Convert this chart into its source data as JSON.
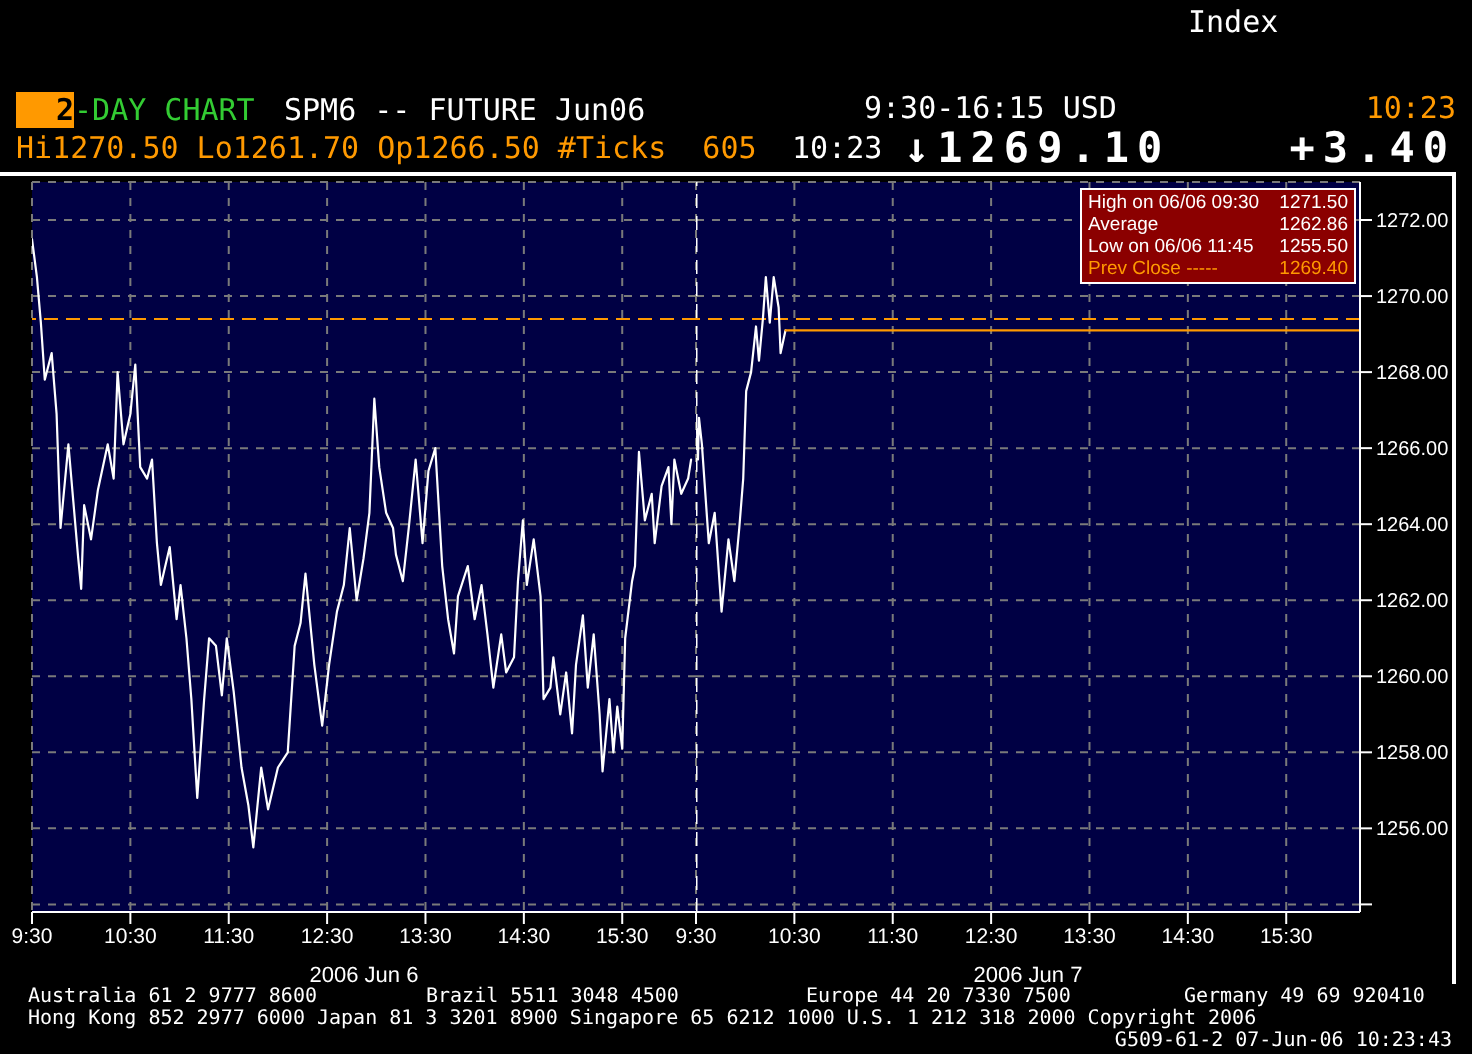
{
  "chart_data": [
    {
      "type": "line",
      "title": "2-DAY CHART",
      "subtitle": "SPM6 -- FUTURE Jun06",
      "xlabel": "2006 Jun 6",
      "annotations": [
        "Index",
        "9:30-16:15 USD",
        "10:23",
        "Hi1270.50 Lo1261.70 Op1266.50 #Ticks  605",
        "10:23",
        "↓1269.10",
        "+3.40",
        "Australia 61 2 9777 8600",
        "Brazil 5511 3048 4500",
        "Europe 44 20 7330 7500",
        "Germany 49 69 920410",
        "Hong Kong 852 2977 6000 Japan 81 3 3201 8900 Singapore 65 6212 1000 U.S. 1 212 318 2000 Copyright 2006",
        "G509-61-2 07-Jun-06 10:23:43"
      ],
      "series": [
        {
          "color": "#ffffff",
          "x": [
            9.5,
            9.55,
            9.59,
            9.63,
            9.7,
            9.75,
            9.79,
            9.87,
            9.92,
            9.97,
            10.0,
            10.03,
            10.1,
            10.17,
            10.27,
            10.33,
            10.37,
            10.43,
            10.5,
            10.55,
            10.6,
            10.67,
            10.72,
            10.77,
            10.81,
            10.9,
            10.97,
            11.01,
            11.07,
            11.12,
            11.18,
            11.25,
            11.3,
            11.37,
            11.43,
            11.48,
            11.55,
            11.63,
            11.7,
            11.75,
            11.83,
            11.9,
            12.0,
            12.1,
            12.17,
            12.23,
            12.28,
            12.37,
            12.45,
            12.52,
            12.6,
            12.67,
            12.73,
            12.8,
            12.87,
            12.93,
            12.98,
            13.03,
            13.1,
            13.17,
            13.2,
            13.27,
            13.33,
            13.4,
            13.47,
            13.53,
            13.6,
            13.67,
            13.73,
            13.79,
            13.83,
            13.93,
            14.0,
            14.07,
            14.13,
            14.19,
            14.27,
            14.32,
            14.4,
            14.44,
            14.49,
            14.53,
            14.6,
            14.67,
            14.7,
            14.77,
            14.8,
            14.87,
            14.93,
            14.99,
            15.03,
            15.1,
            15.15,
            15.21,
            15.27,
            15.3,
            15.37,
            15.41,
            15.45,
            15.5,
            15.53,
            15.6,
            15.63,
            15.67,
            15.73,
            15.8,
            15.83,
            15.9,
            15.97,
            16.0,
            16.03,
            16.1,
            16.17,
            16.2
          ],
          "values": [
            1271.5,
            1270.5,
            1269.3,
            1267.8,
            1268.5,
            1266.9,
            1263.9,
            1266.1,
            1264.6,
            1263.1,
            1262.3,
            1264.5,
            1263.6,
            1264.9,
            1266.1,
            1265.2,
            1268.0,
            1266.1,
            1266.9,
            1268.2,
            1265.5,
            1265.2,
            1265.7,
            1263.5,
            1262.4,
            1263.4,
            1261.5,
            1262.4,
            1261.0,
            1259.4,
            1256.8,
            1259.4,
            1261.0,
            1260.8,
            1259.5,
            1261.0,
            1259.6,
            1257.6,
            1256.6,
            1255.5,
            1257.6,
            1256.5,
            1257.6,
            1258.0,
            1260.8,
            1261.4,
            1262.7,
            1260.3,
            1258.7,
            1260.3,
            1261.7,
            1262.4,
            1263.9,
            1262.0,
            1263.1,
            1264.3,
            1267.3,
            1265.5,
            1264.3,
            1263.9,
            1263.2,
            1262.5,
            1263.9,
            1265.7,
            1263.5,
            1265.4,
            1266.0,
            1262.9,
            1261.5,
            1260.6,
            1262.1,
            1262.9,
            1261.5,
            1262.4,
            1261.1,
            1259.7,
            1261.1,
            1260.1,
            1260.5,
            1262.5,
            1264.1,
            1262.4,
            1263.6,
            1262.1,
            1259.4,
            1259.7,
            1260.5,
            1259.0,
            1260.1,
            1258.5,
            1260.3,
            1261.6,
            1259.7,
            1261.1,
            1259.0,
            1257.5,
            1259.4,
            1258.0,
            1259.2,
            1258.1,
            1261.0,
            1262.5,
            1262.9,
            1265.9,
            1264.1,
            1264.8,
            1263.5,
            1265.0,
            1265.5,
            1264.0,
            1265.7,
            1264.8,
            1265.2,
            1265.7
          ]
        }
      ],
      "xlim": [
        9.5,
        16.25
      ],
      "xticks": [
        {
          "value": 9.5,
          "label": "9:30"
        },
        {
          "value": 10.5,
          "label": "10:30"
        },
        {
          "value": 11.5,
          "label": "11:30"
        },
        {
          "value": 12.5,
          "label": "12:30"
        },
        {
          "value": 13.5,
          "label": "13:30"
        },
        {
          "value": 14.5,
          "label": "14:30"
        },
        {
          "value": 15.5,
          "label": "15:30"
        }
      ],
      "ylim": [
        1253.8,
        1273.0
      ],
      "yticks": [
        1254,
        1256,
        1258,
        1260,
        1262,
        1264,
        1266,
        1268,
        1270,
        1272
      ],
      "tick_labels": "x",
      "grid": true,
      "ref_lines": [
        {
          "axis": "y",
          "value": 1269.4,
          "color": "#ff9900",
          "line_style": "dashed"
        }
      ]
    },
    {
      "type": "line",
      "xlabel": "2006 Jun 7",
      "annotations": [
        "High on 06/06 09:30",
        "1271.50",
        "Average",
        "1262.86",
        "Low on 06/06 11:45",
        "1255.50",
        "1269.40"
      ],
      "series": [
        {
          "color": "#ffffff",
          "x": [
            9.51,
            9.52,
            9.53,
            9.56,
            9.63,
            9.69,
            9.76,
            9.83,
            9.89,
            9.94,
            9.98,
            10.01,
            10.06,
            10.11,
            10.14,
            10.18,
            10.21,
            10.25,
            10.29,
            10.34,
            10.36,
            10.41
          ],
          "values": [
            1266.5,
            1265.7,
            1266.8,
            1266.1,
            1263.5,
            1264.3,
            1261.7,
            1263.6,
            1262.5,
            1263.9,
            1265.2,
            1267.5,
            1268.0,
            1269.2,
            1268.3,
            1269.4,
            1270.5,
            1269.3,
            1270.5,
            1269.7,
            1268.5,
            1269.1
          ]
        },
        {
          "color": "#ff9900",
          "x": [
            10.41,
            16.25
          ],
          "values": [
            1269.1,
            1269.1
          ]
        }
      ],
      "xlim": [
        9.5,
        16.25
      ],
      "xticks": [
        {
          "value": 9.5,
          "label": "9:30"
        },
        {
          "value": 10.5,
          "label": "10:30"
        },
        {
          "value": 11.5,
          "label": "11:30"
        },
        {
          "value": 12.5,
          "label": "12:30"
        },
        {
          "value": 13.5,
          "label": "13:30"
        },
        {
          "value": 14.5,
          "label": "14:30"
        },
        {
          "value": 15.5,
          "label": "15:30"
        }
      ],
      "ylim": [
        1253.8,
        1273.0
      ],
      "yticks": [
        {
          "value": 1254,
          "label": null
        },
        {
          "value": 1256,
          "label": "1256.00"
        },
        {
          "value": 1258,
          "label": "1258.00"
        },
        {
          "value": 1260,
          "label": "1260.00"
        },
        {
          "value": 1262,
          "label": "1262.00"
        },
        {
          "value": 1264,
          "label": "1264.00"
        },
        {
          "value": 1266,
          "label": "1266.00"
        },
        {
          "value": 1268,
          "label": "1268.00"
        },
        {
          "value": 1270,
          "label": "1270.00"
        },
        {
          "value": 1272,
          "label": "1272.00"
        }
      ],
      "grid": true,
      "ref_lines": [
        {
          "axis": "y",
          "value": 1269.4,
          "label": "Prev Close -----",
          "color": "#ff9900",
          "line_style": "dashed"
        },
        {
          "axis": "x",
          "value": 9.5,
          "color": "#ffffff",
          "line_style": "dashed"
        }
      ]
    }
  ]
}
